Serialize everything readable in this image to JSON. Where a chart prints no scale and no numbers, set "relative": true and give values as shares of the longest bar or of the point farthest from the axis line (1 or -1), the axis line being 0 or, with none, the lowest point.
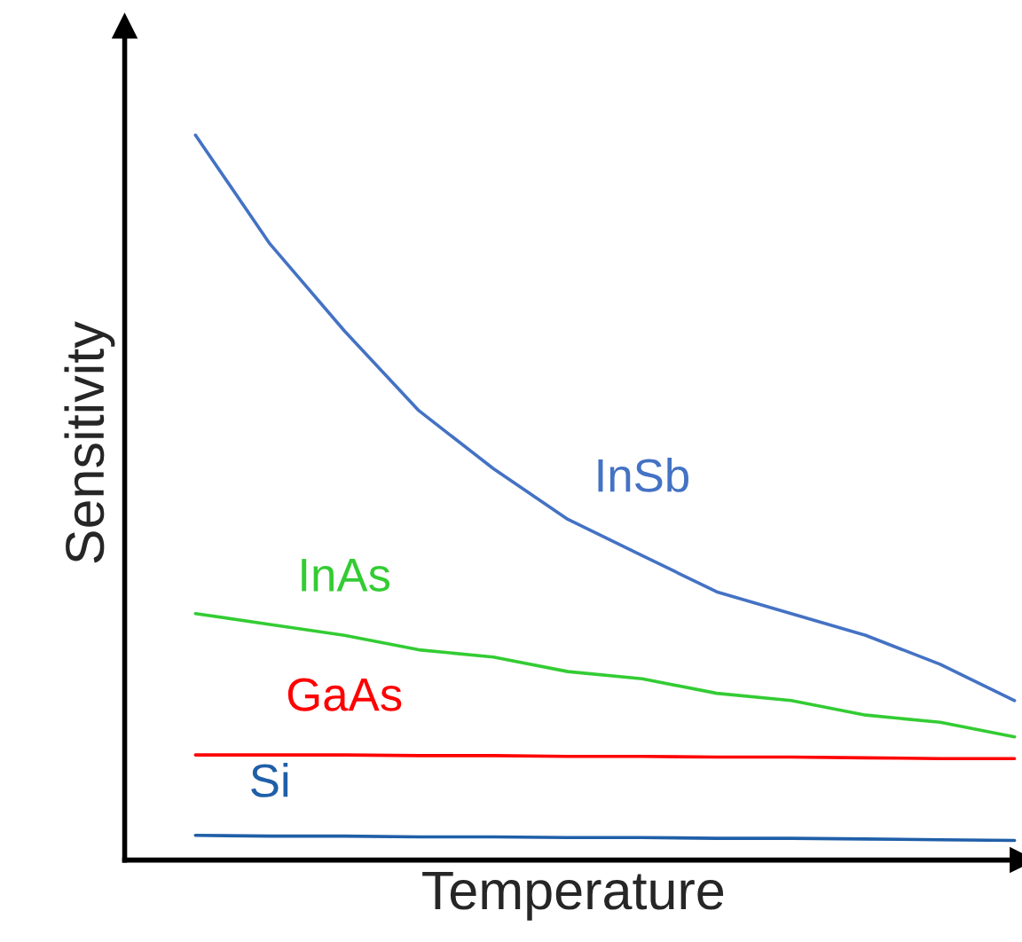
{
  "chart_data": {
    "type": "line",
    "relative": true,
    "xlabel": "Temperature",
    "ylabel": "Sensitivity",
    "categories": [
      null,
      null,
      null,
      null,
      null,
      null,
      null,
      null,
      null,
      null,
      null,
      null
    ],
    "legend": false,
    "marker": "none",
    "line_style": "solid",
    "tick_labels": false,
    "series": [
      {
        "name": "InSb",
        "color": "#4472c4",
        "values": [
          1,
          0.85,
          0.73,
          0.62,
          0.54,
          0.47,
          0.42,
          0.37,
          0.34,
          0.31,
          0.27,
          0.22
        ]
      },
      {
        "name": "InAs",
        "color": "#33cc33",
        "values": [
          0.34,
          0.325,
          0.31,
          0.29,
          0.28,
          0.26,
          0.25,
          0.23,
          0.22,
          0.2,
          0.19,
          0.17
        ]
      },
      {
        "name": "GaAs",
        "color": "#ff0000",
        "values": [
          0.145,
          0.145,
          0.145,
          0.144,
          0.144,
          0.143,
          0.143,
          0.142,
          0.142,
          0.141,
          0.14,
          0.14
        ]
      },
      {
        "name": "Si",
        "color": "#1f5fa8",
        "values": [
          0.034,
          0.033,
          0.033,
          0.032,
          0.032,
          0.031,
          0.031,
          0.03,
          0.03,
          0.029,
          0.028,
          0.027
        ]
      }
    ]
  }
}
